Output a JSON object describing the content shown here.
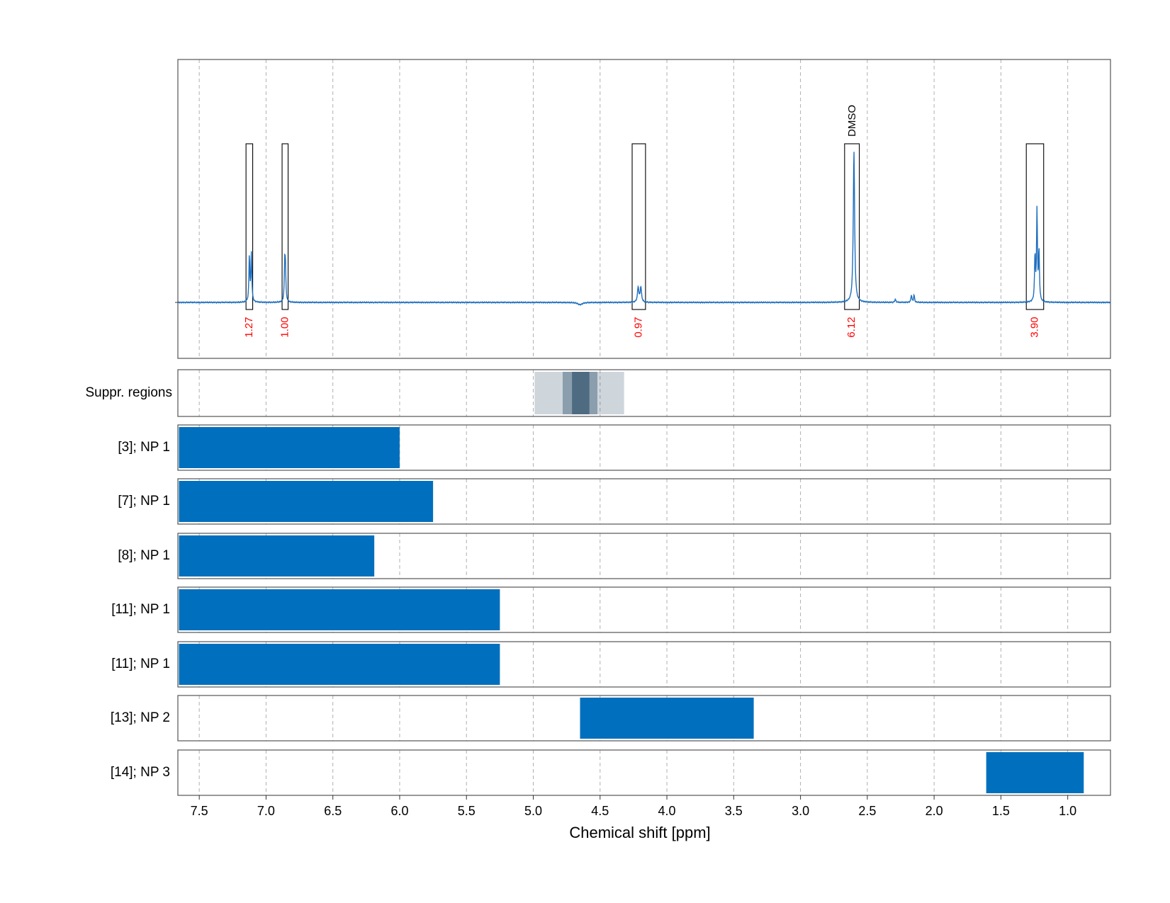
{
  "chart_data": {
    "type": "line",
    "xlabel": "Chemical shift [ppm]",
    "xlim": [
      7.66,
      0.68
    ],
    "x_reversed": true,
    "x_ticks": [
      "7.5",
      "7.0",
      "6.5",
      "6.0",
      "5.5",
      "5.0",
      "4.5",
      "4.0",
      "3.5",
      "3.0",
      "2.5",
      "2.0",
      "1.5",
      "1.0"
    ],
    "x_tick_values": [
      7.5,
      7.0,
      6.5,
      6.0,
      5.5,
      5.0,
      4.5,
      4.0,
      3.5,
      3.0,
      2.5,
      2.0,
      1.5,
      1.0
    ],
    "grid": true,
    "colors": {
      "spectrum": "#1f6fbf",
      "bar": "#006fbd",
      "integral_label": "#ff0000",
      "frame": "#555555",
      "grid": "#b0b0b0"
    },
    "spectrum": {
      "baseline": 0.0,
      "peaks": [
        {
          "ppm": 7.125,
          "height": 0.3,
          "width": 0.004
        },
        {
          "ppm": 7.11,
          "height": 0.32,
          "width": 0.004
        },
        {
          "ppm": 6.86,
          "height": 0.24,
          "width": 0.004
        },
        {
          "ppm": 6.855,
          "height": 0.2,
          "width": 0.004
        },
        {
          "ppm": 4.65,
          "height": -0.015,
          "width": 0.02
        },
        {
          "ppm": 4.215,
          "height": 0.1,
          "width": 0.006
        },
        {
          "ppm": 4.195,
          "height": 0.1,
          "width": 0.006
        },
        {
          "ppm": 2.6,
          "height": 1.0,
          "width": 0.006
        },
        {
          "ppm": 2.29,
          "height": 0.02,
          "width": 0.005
        },
        {
          "ppm": 2.17,
          "height": 0.05,
          "width": 0.004
        },
        {
          "ppm": 2.15,
          "height": 0.05,
          "width": 0.004
        },
        {
          "ppm": 1.245,
          "height": 0.3,
          "width": 0.004
        },
        {
          "ppm": 1.23,
          "height": 0.6,
          "width": 0.004
        },
        {
          "ppm": 1.215,
          "height": 0.33,
          "width": 0.004
        }
      ]
    },
    "integration_regions": [
      {
        "from": 7.15,
        "to": 7.1,
        "integral": "1.27",
        "annotation": ""
      },
      {
        "from": 6.88,
        "to": 6.835,
        "integral": "1.00",
        "annotation": ""
      },
      {
        "from": 4.26,
        "to": 4.16,
        "integral": "0.97",
        "annotation": ""
      },
      {
        "from": 2.67,
        "to": 2.56,
        "integral": "6.12",
        "annotation": "DMSO"
      },
      {
        "from": 1.31,
        "to": 1.18,
        "integral": "3.90",
        "annotation": ""
      }
    ],
    "suppression_label": "Suppr. regions",
    "suppression_bands": [
      {
        "from": 4.99,
        "to": 4.32,
        "opacity": 0.25
      },
      {
        "from": 4.78,
        "to": 4.52,
        "opacity": 0.45
      },
      {
        "from": 4.71,
        "to": 4.58,
        "opacity": 0.75
      }
    ],
    "range_rows": [
      {
        "label": "[3]; NP 1",
        "from": 7.66,
        "to": 6.0
      },
      {
        "label": "[7]; NP 1",
        "from": 7.66,
        "to": 5.75
      },
      {
        "label": "[8]; NP 1",
        "from": 7.66,
        "to": 6.19
      },
      {
        "label": "[11]; NP 1",
        "from": 7.66,
        "to": 5.25
      },
      {
        "label": "[11]; NP 1",
        "from": 7.66,
        "to": 5.25
      },
      {
        "label": "[13]; NP 2",
        "from": 4.65,
        "to": 3.35
      },
      {
        "label": "[14]; NP 3",
        "from": 1.61,
        "to": 0.88
      }
    ]
  }
}
